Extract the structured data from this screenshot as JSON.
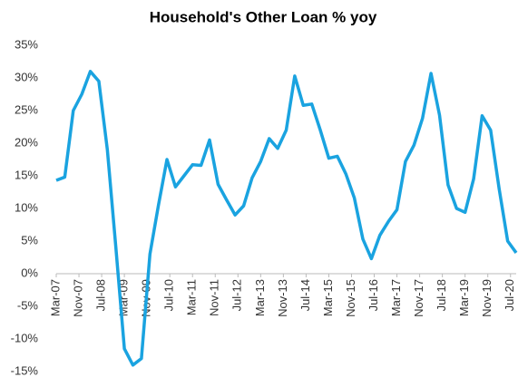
{
  "chart_data": {
    "type": "line",
    "title": "Household's Other Loan % yoy",
    "x": [
      0,
      3,
      6,
      9,
      12,
      15,
      18,
      21,
      24,
      27,
      30,
      33,
      36,
      39,
      42,
      45,
      48,
      51,
      54,
      57,
      60,
      63,
      66,
      69,
      72,
      75,
      78,
      81,
      84,
      87,
      90,
      93,
      96,
      99,
      102,
      105,
      108,
      111,
      114,
      117,
      120,
      123,
      126,
      129,
      132,
      135,
      138,
      141,
      144,
      147,
      150,
      153,
      156,
      159,
      162
    ],
    "series": [
      {
        "name": "Household's Other Loan % yoy",
        "color": "#1aa3e0",
        "values": [
          14.3,
          14.8,
          25,
          27.5,
          31,
          29.5,
          19,
          4,
          -11.5,
          -14,
          -13,
          3,
          10.5,
          17.5,
          13.3,
          15,
          16.7,
          16.6,
          20.5,
          13.7,
          11.3,
          9,
          10.4,
          14.7,
          17.2,
          20.7,
          19.2,
          22,
          30.3,
          25.8,
          26,
          22,
          17.7,
          18,
          15.3,
          11.6,
          5.3,
          2.3,
          5.9,
          8,
          9.8,
          17.2,
          19.7,
          23.8,
          30.7,
          24.3,
          13.6,
          10,
          9.4,
          14.5,
          24.2,
          22,
          13,
          5,
          3.2
        ]
      }
    ],
    "xlim": [
      0,
      162
    ],
    "xticks": [
      {
        "value": 0,
        "label": "Mar-07"
      },
      {
        "value": 8,
        "label": "Nov-07"
      },
      {
        "value": 16,
        "label": "Jul-08"
      },
      {
        "value": 24,
        "label": "Mar-09"
      },
      {
        "value": 32,
        "label": "Nov-09"
      },
      {
        "value": 40,
        "label": "Jul-10"
      },
      {
        "value": 48,
        "label": "Mar-11"
      },
      {
        "value": 56,
        "label": "Nov-11"
      },
      {
        "value": 64,
        "label": "Jul-12"
      },
      {
        "value": 72,
        "label": "Mar-13"
      },
      {
        "value": 80,
        "label": "Nov-13"
      },
      {
        "value": 88,
        "label": "Jul-14"
      },
      {
        "value": 96,
        "label": "Mar-15"
      },
      {
        "value": 104,
        "label": "Nov-15"
      },
      {
        "value": 112,
        "label": "Jul-16"
      },
      {
        "value": 120,
        "label": "Mar-17"
      },
      {
        "value": 128,
        "label": "Nov-17"
      },
      {
        "value": 136,
        "label": "Jul-18"
      },
      {
        "value": 144,
        "label": "Mar-19"
      },
      {
        "value": 152,
        "label": "Nov-19"
      },
      {
        "value": 160,
        "label": "Jul-20"
      }
    ],
    "ylim": [
      -15,
      35
    ],
    "yticks": [
      {
        "value": -15,
        "label": "-15%"
      },
      {
        "value": -10,
        "label": "-10%"
      },
      {
        "value": -5,
        "label": "-5%"
      },
      {
        "value": 0,
        "label": "0%"
      },
      {
        "value": 5,
        "label": "5%"
      },
      {
        "value": 10,
        "label": "10%"
      },
      {
        "value": 15,
        "label": "15%"
      },
      {
        "value": 20,
        "label": "20%"
      },
      {
        "value": 25,
        "label": "25%"
      },
      {
        "value": 30,
        "label": "30%"
      },
      {
        "value": 35,
        "label": "35%"
      }
    ],
    "grid": false
  }
}
